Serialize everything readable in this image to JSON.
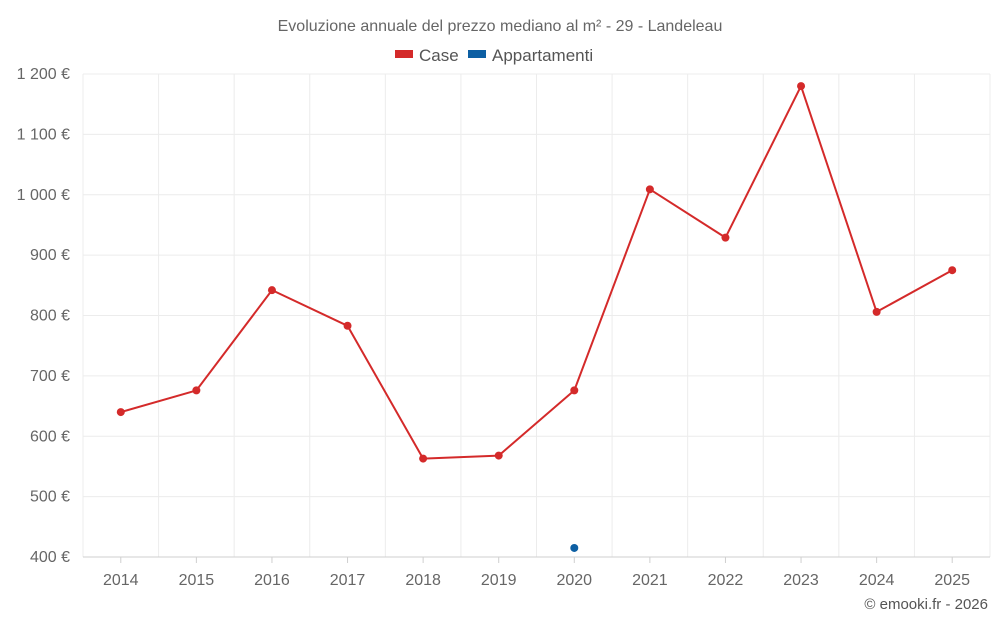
{
  "chart_data": {
    "type": "line",
    "title": "Evoluzione annuale del prezzo mediano al m² - 29 - Landeleau",
    "categories": [
      "2014",
      "2015",
      "2016",
      "2017",
      "2018",
      "2019",
      "2020",
      "2021",
      "2022",
      "2023",
      "2024",
      "2025"
    ],
    "series": [
      {
        "name": "Case",
        "color": "#d42a2a",
        "values": [
          640,
          676,
          842,
          783,
          563,
          568,
          676,
          1009,
          929,
          1180,
          806,
          875
        ]
      },
      {
        "name": "Appartamenti",
        "color": "#0d5fa3",
        "values": [
          null,
          null,
          null,
          null,
          null,
          null,
          415,
          null,
          null,
          null,
          null,
          null
        ]
      }
    ],
    "ylim": [
      400,
      1200
    ],
    "yticks": [
      400,
      500,
      600,
      700,
      800,
      900,
      1000,
      1100,
      1200
    ],
    "ytick_labels": [
      "400 €",
      "500 €",
      "600 €",
      "700 €",
      "800 €",
      "900 €",
      "1 000 €",
      "1 100 €",
      "1 200 €"
    ],
    "grid": true,
    "legend_position": "top-center",
    "xlabel": "",
    "ylabel": ""
  },
  "credit": "© emooki.fr - 2026"
}
